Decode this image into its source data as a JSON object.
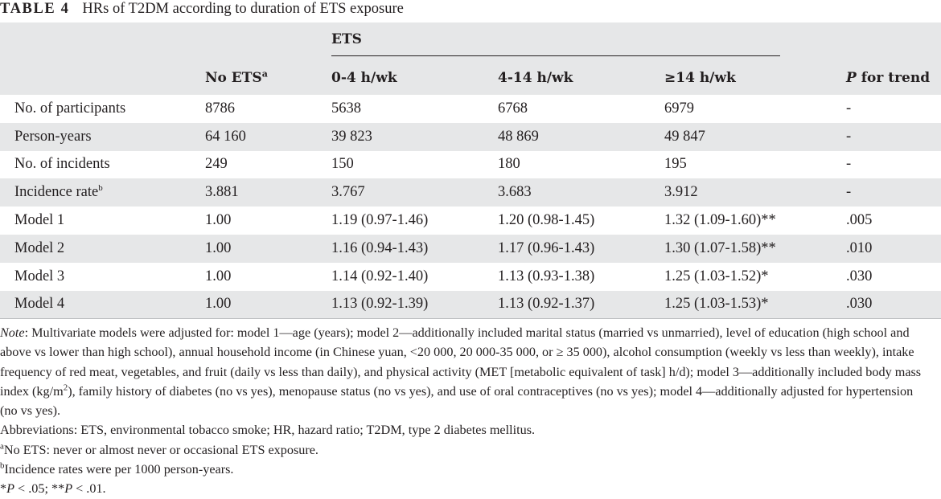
{
  "caption": {
    "label": "TABLE 4",
    "title": "HRs of T2DM according to duration of ETS exposure"
  },
  "header": {
    "group_label": "ETS",
    "no_ets": "No ETS",
    "no_ets_sup": "a",
    "col_0_4": "0-4 h/wk",
    "col_4_14": "4-14 h/wk",
    "col_14": "≥14 h/wk",
    "p_italic": "P",
    "p_rest": " for trend"
  },
  "rows": [
    {
      "label": "No. of participants",
      "sup": "",
      "no_ets": "8786",
      "c1": "5638",
      "c2": "6768",
      "c3": "6979",
      "p": "-"
    },
    {
      "label": "Person-years",
      "sup": "",
      "no_ets": "64 160",
      "c1": "39 823",
      "c2": "48 869",
      "c3": "49 847",
      "p": "-"
    },
    {
      "label": "No. of incidents",
      "sup": "",
      "no_ets": "249",
      "c1": "150",
      "c2": "180",
      "c3": "195",
      "p": "-"
    },
    {
      "label": "Incidence rate",
      "sup": "b",
      "no_ets": "3.881",
      "c1": "3.767",
      "c2": "3.683",
      "c3": "3.912",
      "p": "-"
    },
    {
      "label": "Model 1",
      "sup": "",
      "no_ets": "1.00",
      "c1": "1.19 (0.97-1.46)",
      "c2": "1.20 (0.98-1.45)",
      "c3": "1.32 (1.09-1.60)**",
      "p": ".005"
    },
    {
      "label": "Model 2",
      "sup": "",
      "no_ets": "1.00",
      "c1": "1.16 (0.94-1.43)",
      "c2": "1.17 (0.96-1.43)",
      "c3": "1.30 (1.07-1.58)**",
      "p": ".010"
    },
    {
      "label": "Model 3",
      "sup": "",
      "no_ets": "1.00",
      "c1": "1.14 (0.92-1.40)",
      "c2": "1.13 (0.93-1.38)",
      "c3": "1.25 (1.03-1.52)*",
      "p": ".030"
    },
    {
      "label": "Model 4",
      "sup": "",
      "no_ets": "1.00",
      "c1": "1.13 (0.92-1.39)",
      "c2": "1.13 (0.92-1.37)",
      "c3": "1.25 (1.03-1.53)*",
      "p": ".030"
    }
  ],
  "notes": {
    "note_label": "Note",
    "note_part1": ": Multivariate models were adjusted for: model 1—age (years); model 2—additionally included marital status (married vs unmarried), level of education (high school and above vs lower than high school), annual household income (in Chinese yuan, <20 000, 20 000-35 000, or ≥ 35 000), alcohol consumption (weekly vs less than weekly), intake frequency of red meat, vegetables, and fruit (daily vs less than daily), and physical activity (MET [metabolic equivalent of task] h/d); model 3—additionally included body mass index (kg/m",
    "note_sup": "2",
    "note_part2": "), family history of diabetes (no vs yes), menopause status (no vs yes), and use of oral contraceptives (no vs yes); model 4—additionally adjusted for hypertension (no vs yes).",
    "abbreviations": "Abbreviations: ETS, environmental tobacco smoke; HR, hazard ratio; T2DM, type 2 diabetes mellitus.",
    "fn_a_mark": "a",
    "fn_a_text": "No ETS: never or almost never or occasional ETS exposure.",
    "fn_b_mark": "b",
    "fn_b_text": "Incidence rates were per 1000 person-years.",
    "sig_star1": "*",
    "sig_p1": "P",
    "sig_text1": " < .05; **",
    "sig_p2": "P",
    "sig_text2": " < .01."
  }
}
